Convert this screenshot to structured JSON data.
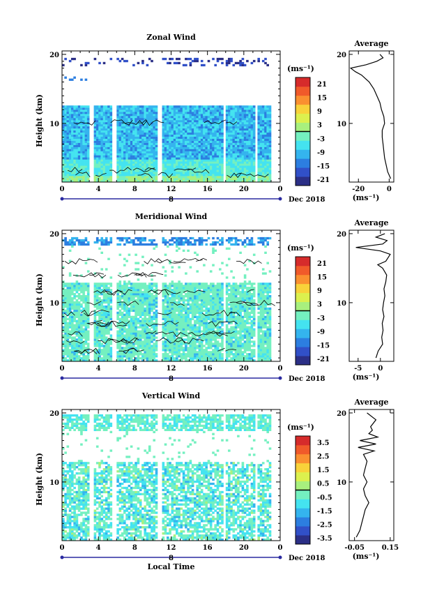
{
  "chart_data": [
    {
      "type": "heatmap",
      "title": "Zonal Wind",
      "xlabel": "",
      "ylabel": "Height (km)",
      "x_ticks": [
        "0",
        "4",
        "8",
        "12",
        "16",
        "20",
        "0"
      ],
      "date_label": "Dec 2018",
      "day_tick": "8",
      "y_ticks": [
        "20",
        "10"
      ],
      "xlim": [
        0,
        24
      ],
      "ylim": [
        1.5,
        20.5
      ],
      "colorbar": {
        "unit": "(ms⁻¹)",
        "ticks": [
          "21",
          "15",
          "9",
          "3",
          "-3",
          "-9",
          "-15",
          "-21"
        ],
        "range": [
          -24,
          24
        ]
      },
      "profile": {
        "title": "Average",
        "x_ticks": [
          "-20",
          "0"
        ],
        "xlim": [
          -26,
          3
        ],
        "xlabel": "(ms⁻¹)",
        "y_ticks": [
          "20",
          "10"
        ],
        "heights": [
          2,
          3,
          4,
          5,
          6,
          7,
          8,
          9,
          10,
          11,
          12,
          13,
          14,
          15,
          16,
          17,
          17.5,
          18,
          18.5,
          19,
          19.5,
          20
        ],
        "values": [
          1,
          -1,
          -2,
          -3,
          -3.5,
          -4,
          -4.5,
          -4.5,
          -3,
          -3.5,
          -5,
          -6,
          -8,
          -10,
          -13,
          -18,
          -22,
          -25,
          -15,
          -8,
          -4,
          -6
        ]
      }
    },
    {
      "type": "heatmap",
      "title": "Meridional Wind",
      "xlabel": "",
      "ylabel": "Height (km)",
      "x_ticks": [
        "0",
        "4",
        "8",
        "12",
        "16",
        "20",
        "0"
      ],
      "date_label": "Dec 2018",
      "day_tick": "8",
      "y_ticks": [
        "20",
        "10"
      ],
      "xlim": [
        0,
        24
      ],
      "ylim": [
        1.5,
        20.5
      ],
      "colorbar": {
        "unit": "(ms⁻¹)",
        "ticks": [
          "21",
          "15",
          "9",
          "3",
          "-3",
          "-9",
          "-15",
          "-21"
        ],
        "range": [
          -24,
          24
        ]
      },
      "profile": {
        "title": "Average",
        "x_ticks": [
          "-5",
          "0"
        ],
        "xlim": [
          -7,
          3
        ],
        "xlabel": "(ms⁻¹)",
        "y_ticks": [
          "20",
          "10"
        ],
        "heights": [
          2,
          3,
          4,
          5,
          6,
          7,
          8,
          9,
          10,
          11,
          12,
          13,
          14,
          15,
          15.5,
          16,
          17,
          17.5,
          18,
          18.5,
          19,
          19.5,
          20
        ],
        "values": [
          -1,
          -0.5,
          0.5,
          0.3,
          0.6,
          0.4,
          0.8,
          0.5,
          0.7,
          1,
          0.8,
          1.2,
          1.4,
          0.5,
          -0.6,
          1.2,
          2.2,
          0,
          -5.5,
          0.5,
          1.5,
          -1,
          1
        ]
      }
    },
    {
      "type": "heatmap",
      "title": "Vertical Wind",
      "xlabel": "Local Time",
      "ylabel": "Height (km)",
      "x_ticks": [
        "0",
        "4",
        "8",
        "12",
        "16",
        "20",
        "0"
      ],
      "date_label": "Dec 2018",
      "day_tick": "8",
      "y_ticks": [
        "20",
        "10"
      ],
      "xlim": [
        0,
        24
      ],
      "ylim": [
        1.5,
        20.5
      ],
      "colorbar": {
        "unit": "(ms⁻¹)",
        "ticks": [
          "3.5",
          "2.5",
          "1.5",
          "0.5",
          "-0.5",
          "-1.5",
          "-2.5",
          "-3.5"
        ],
        "range": [
          -4,
          4
        ]
      },
      "profile": {
        "title": "Average",
        "x_ticks": [
          "-0.05",
          "0.15"
        ],
        "xlim": [
          -0.08,
          0.17
        ],
        "xlabel": "(ms⁻¹)",
        "y_ticks": [
          "20",
          "10"
        ],
        "heights": [
          2,
          3,
          4,
          5,
          6,
          7,
          8,
          9,
          10,
          11,
          12,
          13,
          14,
          14.5,
          15,
          15.5,
          16,
          16.5,
          17,
          17.5,
          18,
          19,
          20
        ],
        "values": [
          -0.04,
          -0.02,
          -0.01,
          0.0,
          0.01,
          0.03,
          0.01,
          0.0,
          0.02,
          0.0,
          0.01,
          0.02,
          0.0,
          0.06,
          -0.03,
          0.07,
          -0.02,
          0.08,
          0.03,
          0.05,
          0.04,
          0.07,
          0.02
        ]
      }
    }
  ],
  "colors": {
    "palette": [
      "#2b2f86",
      "#3150c8",
      "#2c7ee0",
      "#34b4ee",
      "#44e3f0",
      "#74f0c0",
      "#a8f07e",
      "#dcf04e",
      "#f8d23a",
      "#fa9030",
      "#f05a2a",
      "#d62b2b"
    ],
    "frame": "#000000",
    "time_axis": "#2a2aa0"
  }
}
